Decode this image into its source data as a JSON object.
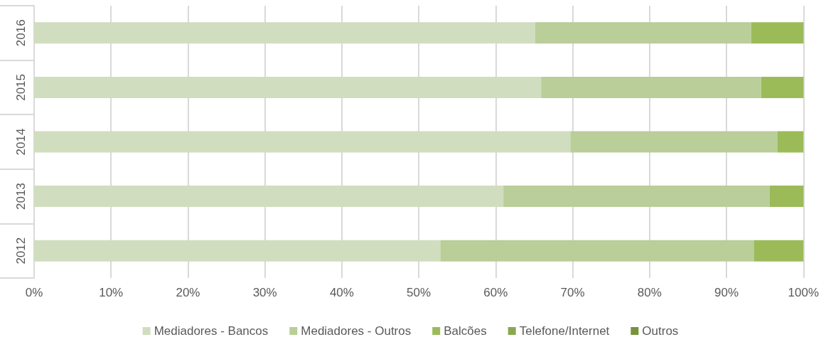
{
  "chart_data": {
    "type": "bar",
    "orientation": "horizontal",
    "stacked": true,
    "categories": [
      "2016",
      "2015",
      "2014",
      "2013",
      "2012"
    ],
    "series": [
      {
        "name": "Mediadores - Bancos",
        "color": "#d1ddbf",
        "values": [
          65.1,
          65.9,
          69.7,
          61.0,
          52.8
        ]
      },
      {
        "name": "Mediadores - Outros",
        "color": "#b9ce98",
        "values": [
          28.1,
          28.6,
          26.9,
          34.6,
          40.8
        ]
      },
      {
        "name": "Balcões",
        "color": "#9bbb59",
        "values": [
          6.7,
          5.4,
          3.4,
          4.3,
          6.4
        ]
      },
      {
        "name": "Telefone/Internet",
        "color": "#8aa84f",
        "values": [
          0.1,
          0.1,
          0,
          0.1,
          0
        ]
      },
      {
        "name": "Outros",
        "color": "#76923c",
        "values": [
          0,
          0,
          0,
          0,
          0
        ]
      }
    ],
    "xlim": [
      0,
      100
    ],
    "xticks": [
      {
        "value": 0,
        "label": "0%"
      },
      {
        "value": 10,
        "label": "10%"
      },
      {
        "value": 20,
        "label": "20%"
      },
      {
        "value": 30,
        "label": "30%"
      },
      {
        "value": 40,
        "label": "40%"
      },
      {
        "value": 50,
        "label": "50%"
      },
      {
        "value": 60,
        "label": "60%"
      },
      {
        "value": 70,
        "label": "70%"
      },
      {
        "value": 80,
        "label": "80%"
      },
      {
        "value": 90,
        "label": "90%"
      },
      {
        "value": 100,
        "label": "100%"
      }
    ],
    "grid": "x",
    "legend": "bottom"
  }
}
